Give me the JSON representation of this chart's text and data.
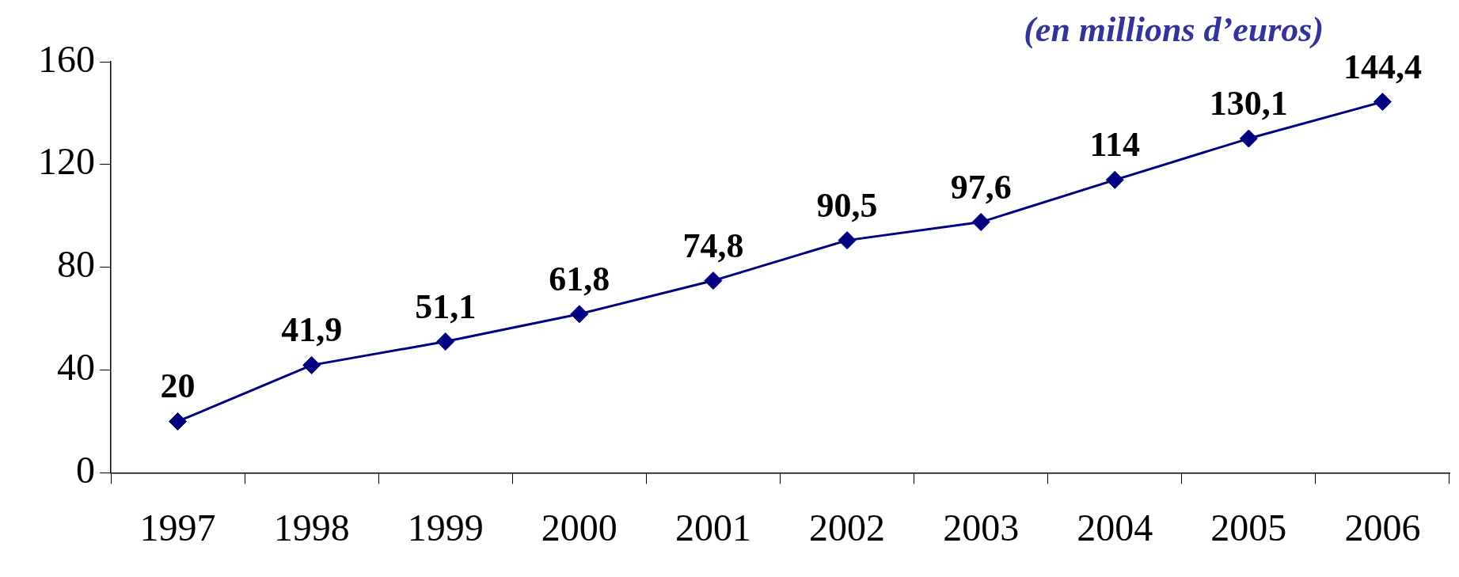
{
  "chart_data": {
    "type": "line",
    "title": "(en millions d’euros)",
    "categories": [
      "1997",
      "1998",
      "1999",
      "2000",
      "2001",
      "2002",
      "2003",
      "2004",
      "2005",
      "2006"
    ],
    "values": [
      20,
      41.9,
      51.1,
      61.8,
      74.8,
      90.5,
      97.6,
      114,
      130.1,
      144.4
    ],
    "value_labels": [
      "20",
      "41,9",
      "51,1",
      "61,8",
      "74,8",
      "90,5",
      "97,6",
      "114",
      "130,1",
      "144,4"
    ],
    "color": "#000080",
    "marker": "diamond",
    "line_style": "solid",
    "ylim": [
      0,
      160
    ],
    "yticks": [
      0,
      40,
      80,
      120,
      160
    ],
    "grid": false,
    "legend": false
  }
}
